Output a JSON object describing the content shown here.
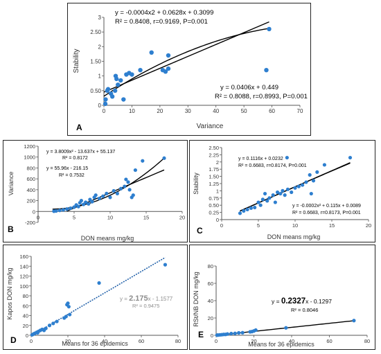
{
  "panels": [
    {
      "id": "A",
      "letter": "A",
      "chart_data": {
        "type": "scatter",
        "xlabel": "Variance",
        "ylabel": "Stability",
        "xlim": [
          0,
          70
        ],
        "ylim": [
          0,
          3
        ],
        "xticks": [
          0,
          10,
          20,
          30,
          40,
          50,
          60,
          70
        ],
        "yticks": [
          0,
          0.5,
          1,
          1.5,
          2,
          2.5,
          3
        ],
        "points": [
          [
            0.5,
            0.05
          ],
          [
            0.6,
            0.2
          ],
          [
            1.2,
            0.5
          ],
          [
            1.5,
            0.55
          ],
          [
            2.5,
            0.4
          ],
          [
            3,
            0.3
          ],
          [
            4,
            0.5
          ],
          [
            4.5,
            0.9
          ],
          [
            4.2,
            1.0
          ],
          [
            5,
            0.7
          ],
          [
            6,
            0.85
          ],
          [
            7,
            0.2
          ],
          [
            8,
            1.05
          ],
          [
            9,
            1.1
          ],
          [
            10,
            1.05
          ],
          [
            13,
            1.2
          ],
          [
            17,
            1.8
          ],
          [
            21,
            1.2
          ],
          [
            22,
            1.15
          ],
          [
            23,
            1.7
          ],
          [
            23,
            1.25
          ],
          [
            58,
            1.2
          ],
          [
            59,
            2.6
          ]
        ],
        "fits": [
          {
            "kind": "poly2",
            "coef": [
              -0.0004,
              0.0628,
              0.3099
            ],
            "x_range": [
              0,
              59
            ]
          },
          {
            "kind": "linear",
            "coef": [
              0.0406,
              0.449
            ],
            "x_range": [
              0,
              59
            ]
          }
        ],
        "annotations": {
          "poly_eq": "y = -0.0004x2 + 0.0628x + 0.3099",
          "poly_stats": "R² = 0.8408, r=0.9169, P=0.001",
          "lin_eq": "y = 0.0406x + 0.449",
          "lin_stats": "R² = 0.8088, r=0.8993, P=0.001"
        }
      }
    },
    {
      "id": "B",
      "letter": "B",
      "chart_data": {
        "type": "scatter",
        "xlabel": "DON means mg/kg",
        "ylabel": "Variance",
        "xlim": [
          0,
          20
        ],
        "ylim": [
          -200,
          1200
        ],
        "xticks": [
          0,
          5,
          10,
          15,
          20
        ],
        "yticks": [
          -200,
          0,
          200,
          400,
          600,
          800,
          1000,
          1200
        ],
        "points": [
          [
            2.2,
            5
          ],
          [
            2.5,
            10
          ],
          [
            3,
            20
          ],
          [
            3.5,
            30
          ],
          [
            4,
            45
          ],
          [
            4.5,
            60
          ],
          [
            5,
            80
          ],
          [
            5.3,
            120
          ],
          [
            5.6,
            90
          ],
          [
            5.8,
            160
          ],
          [
            6,
            200
          ],
          [
            6.3,
            130
          ],
          [
            6.6,
            170
          ],
          [
            7,
            140
          ],
          [
            7.2,
            220
          ],
          [
            7.5,
            180
          ],
          [
            7.8,
            260
          ],
          [
            8,
            300
          ],
          [
            8.5,
            240
          ],
          [
            9,
            280
          ],
          [
            9.5,
            330
          ],
          [
            10,
            260
          ],
          [
            10.5,
            380
          ],
          [
            11,
            330
          ],
          [
            11.5,
            420
          ],
          [
            12,
            460
          ],
          [
            12.2,
            590
          ],
          [
            12.5,
            540
          ],
          [
            12.7,
            400
          ],
          [
            13,
            260
          ],
          [
            13.2,
            300
          ],
          [
            13.5,
            760
          ],
          [
            14.5,
            930
          ],
          [
            17.5,
            980
          ]
        ],
        "fits": [
          {
            "kind": "poly2",
            "coef": [
              3.8009,
              -13.637,
              55.137
            ],
            "x_range": [
              2,
              17.5
            ]
          },
          {
            "kind": "linear",
            "coef": [
              55.96,
              -216.15
            ],
            "x_range": [
              4,
              17.5
            ]
          }
        ],
        "annotations": {
          "poly_eq": "y = 3.8009x² - 13.637x + 55.137",
          "poly_stats": "R² = 0.8172",
          "lin_eq": "y = 55.96x - 216.15",
          "lin_stats": "R² = 0.7532"
        }
      }
    },
    {
      "id": "C",
      "letter": "C",
      "chart_data": {
        "type": "scatter",
        "xlabel": "DON means mg/kg",
        "ylabel": "Stability",
        "xlim": [
          0,
          20
        ],
        "ylim": [
          0,
          2.5
        ],
        "xticks": [
          0,
          5,
          10,
          15,
          20
        ],
        "yticks": [
          0,
          0.25,
          0.5,
          0.75,
          1,
          1.25,
          1.5,
          1.75,
          2,
          2.25,
          2.5
        ],
        "points": [
          [
            2.5,
            0.22
          ],
          [
            3,
            0.3
          ],
          [
            3.5,
            0.35
          ],
          [
            4,
            0.4
          ],
          [
            4.5,
            0.42
          ],
          [
            5,
            0.6
          ],
          [
            5.3,
            0.5
          ],
          [
            5.6,
            0.7
          ],
          [
            5.9,
            0.9
          ],
          [
            6.2,
            0.65
          ],
          [
            6.5,
            0.75
          ],
          [
            7,
            0.85
          ],
          [
            7.3,
            0.6
          ],
          [
            7.6,
            0.95
          ],
          [
            8,
            0.9
          ],
          [
            8.3,
            1.0
          ],
          [
            8.6,
            0.85
          ],
          [
            8.9,
            2.15
          ],
          [
            9,
            1.05
          ],
          [
            9.5,
            0.95
          ],
          [
            10,
            1.1
          ],
          [
            10.5,
            1.15
          ],
          [
            11,
            1.2
          ],
          [
            11.5,
            1.3
          ],
          [
            12,
            1.55
          ],
          [
            12.2,
            0.9
          ],
          [
            12.5,
            1.35
          ],
          [
            13,
            1.65
          ],
          [
            14,
            1.9
          ],
          [
            17.5,
            2.15
          ]
        ],
        "fits": [
          {
            "kind": "linear",
            "coef": [
              0.1116,
              0.0232
            ],
            "x_range": [
              2.5,
              17.5
            ]
          },
          {
            "kind": "poly2",
            "coef": [
              -0.0002,
              0.115,
              0.0089
            ],
            "x_range": [
              2.5,
              17.5
            ]
          }
        ],
        "annotations": {
          "lin_eq": "y = 0.1116x + 0.0232",
          "lin_stats": "R² = 0.6683, r=0.8174, P=0.001",
          "poly_eq": "y = -0.0002x² + 0.115x + 0.0089",
          "poly_stats": "R² = 0.6683, r=0.8173, P=0.001"
        }
      }
    },
    {
      "id": "D",
      "letter": "D",
      "chart_data": {
        "type": "scatter",
        "xlabel": "Means for 36 epidemics",
        "ylabel": "Kapos DON mg/kg",
        "xlim": [
          0,
          80
        ],
        "ylim": [
          0,
          160
        ],
        "xticks": [
          0,
          20,
          40,
          60,
          80
        ],
        "yticks": [
          0,
          20,
          40,
          60,
          80,
          100,
          120,
          140,
          160
        ],
        "points": [
          [
            0.5,
            1
          ],
          [
            1,
            2
          ],
          [
            1.5,
            3
          ],
          [
            2,
            4
          ],
          [
            3,
            6
          ],
          [
            3.5,
            5
          ],
          [
            4,
            8
          ],
          [
            5,
            10
          ],
          [
            6,
            12
          ],
          [
            7,
            10
          ],
          [
            8,
            14
          ],
          [
            10,
            20
          ],
          [
            12,
            24
          ],
          [
            14,
            28
          ],
          [
            18,
            35
          ],
          [
            19,
            38
          ],
          [
            19.5,
            62
          ],
          [
            20,
            65
          ],
          [
            20.5,
            58
          ],
          [
            21,
            42
          ],
          [
            37,
            106
          ],
          [
            73,
            143
          ]
        ],
        "fits": [
          {
            "kind": "linear",
            "coef": [
              2.175,
              -1.1577
            ],
            "x_range": [
              0,
              73
            ],
            "style": "dashed"
          }
        ],
        "annotations": {
          "lin_eq_prefix": "y = ",
          "lin_eq_slope": "2.175",
          "lin_eq_suffix": "x - 1.1577",
          "lin_stats": "R² = 0.9475"
        }
      }
    },
    {
      "id": "E",
      "letter": "E",
      "chart_data": {
        "type": "scatter",
        "xlabel": "Means for 36 epidemics",
        "ylabel": "RSt/NB DON mg/kg",
        "xlim": [
          0,
          80
        ],
        "ylim": [
          0,
          80
        ],
        "xticks": [
          0,
          20,
          40,
          60,
          80
        ],
        "yticks": [
          0,
          20,
          40,
          60,
          80
        ],
        "points": [
          [
            0.5,
            0.2
          ],
          [
            1,
            0.3
          ],
          [
            2,
            0.5
          ],
          [
            3,
            0.7
          ],
          [
            4,
            1
          ],
          [
            5,
            1
          ],
          [
            6,
            1.5
          ],
          [
            8,
            2
          ],
          [
            10,
            2.2
          ],
          [
            12,
            2.8
          ],
          [
            14,
            3
          ],
          [
            18,
            4
          ],
          [
            19,
            4.3
          ],
          [
            20,
            5
          ],
          [
            21,
            6
          ],
          [
            37,
            8.6
          ],
          [
            73,
            17
          ]
        ],
        "fits": [
          {
            "kind": "linear",
            "coef": [
              0.2327,
              -0.1297
            ],
            "x_range": [
              0,
              73
            ]
          }
        ],
        "annotations": {
          "lin_eq_prefix": "y = ",
          "lin_eq_slope": "0.2327",
          "lin_eq_suffix": "x - 0.1297",
          "lin_stats": "R² = 0.8046"
        }
      }
    }
  ],
  "colors": {
    "point": "#2e7fcf",
    "line": "#000000",
    "dashed": "#1f5fa8",
    "grey_text": "#8c8c8c",
    "axis": "#555555"
  }
}
